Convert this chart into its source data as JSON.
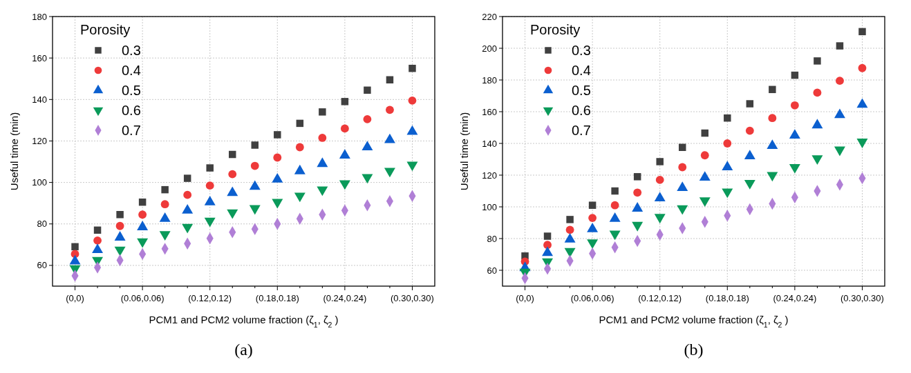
{
  "chart_data": [
    {
      "type": "scatter",
      "ylabel": "Useful time (min)",
      "xlabel": "PCM1 and PCM2 volume fraction (ζ$_{1}$, ζ$_{2}$ )",
      "legend_title": "Porosity",
      "legend": "top left",
      "grid": true,
      "annotations": [
        "(a)"
      ],
      "categories": [
        "(0,0)",
        null,
        null,
        "(0.06,0.06)",
        null,
        null,
        "(0.12,0.12)",
        null,
        null,
        "(0.18,0.18)",
        null,
        null,
        "(0.24,0.24)",
        null,
        null,
        "(0.30,0.30)"
      ],
      "ylim": [
        50,
        180
      ],
      "yticks": [
        60,
        80,
        100,
        120,
        140,
        160,
        180
      ],
      "series": [
        {
          "name": "0.3",
          "color": "#404040",
          "marker": "square",
          "values": [
            69,
            77,
            84.5,
            90.5,
            96.5,
            102,
            107,
            113.5,
            118,
            123,
            128.5,
            134,
            139,
            144.5,
            149.5,
            155
          ]
        },
        {
          "name": "0.4",
          "color": "#ee3a3a",
          "marker": "circle",
          "values": [
            65.5,
            72,
            79,
            84.5,
            89.5,
            94,
            98.5,
            104,
            108,
            112,
            117,
            121.5,
            126,
            130.5,
            135,
            139.5
          ]
        },
        {
          "name": "0.5",
          "color": "#0b5fcf",
          "marker": "triangle",
          "values": [
            62,
            67.5,
            73.5,
            78.5,
            82.5,
            86.5,
            90.5,
            95,
            98,
            101.5,
            105.5,
            109,
            113,
            117,
            120.5,
            124.5
          ]
        },
        {
          "name": "0.6",
          "color": "#0a9a5a",
          "marker": "triangle-down",
          "values": [
            58.5,
            62.5,
            67.5,
            71.5,
            75,
            78.5,
            81.5,
            85.5,
            87.5,
            90.5,
            93.5,
            96.5,
            99.5,
            102.5,
            105.5,
            108.5
          ]
        },
        {
          "name": "0.7",
          "color": "#b07fd6",
          "marker": "diamond",
          "values": [
            55,
            59,
            62.5,
            65.5,
            68,
            70.5,
            73,
            76,
            77.5,
            80,
            82.5,
            84.5,
            86.5,
            89,
            91,
            93.5
          ]
        }
      ]
    },
    {
      "type": "scatter",
      "ylabel": "Useful time (min)",
      "xlabel": "PCM1 and PCM2 volume fraction (ζ$_{1}$, ζ$_{2}$ )",
      "legend_title": "Porosity",
      "legend": "top left",
      "grid": true,
      "annotations": [
        "(b)"
      ],
      "categories": [
        "(0,0)",
        null,
        null,
        "(0.06,0.06)",
        null,
        null,
        "(0.12,0.12)",
        null,
        null,
        "(0.18,0.18)",
        null,
        null,
        "(0.24,0.24)",
        null,
        null,
        "(0.30,0.30)"
      ],
      "ylim": [
        50,
        220
      ],
      "yticks": [
        60,
        80,
        100,
        120,
        140,
        160,
        180,
        200,
        220
      ],
      "series": [
        {
          "name": "0.3",
          "color": "#404040",
          "marker": "square",
          "values": [
            69,
            81.5,
            92,
            101,
            110,
            119,
            128.5,
            137.5,
            146.5,
            156,
            165,
            174,
            183,
            192,
            201.5,
            210.5
          ]
        },
        {
          "name": "0.4",
          "color": "#ee3a3a",
          "marker": "circle",
          "values": [
            65.5,
            76,
            85.5,
            93,
            101,
            109,
            117,
            125,
            132.5,
            140,
            148,
            156,
            164,
            172,
            179.5,
            187.5
          ]
        },
        {
          "name": "0.5",
          "color": "#0b5fcf",
          "marker": "triangle",
          "values": [
            61.5,
            71,
            79.5,
            86,
            92.5,
            99,
            105.5,
            112,
            118.5,
            125,
            132,
            138.5,
            145,
            151.5,
            158,
            164.5
          ]
        },
        {
          "name": "0.6",
          "color": "#0a9a5a",
          "marker": "triangle-down",
          "values": [
            59,
            65.5,
            72,
            77.5,
            83,
            88.5,
            93.5,
            99,
            104,
            109.5,
            115,
            120,
            125,
            130.5,
            136,
            141
          ]
        },
        {
          "name": "0.7",
          "color": "#b07fd6",
          "marker": "diamond",
          "values": [
            55,
            61,
            66,
            70.5,
            74.5,
            78.5,
            82.5,
            86.5,
            90.5,
            94.5,
            98.5,
            102,
            106,
            110,
            114,
            118
          ]
        }
      ]
    }
  ]
}
